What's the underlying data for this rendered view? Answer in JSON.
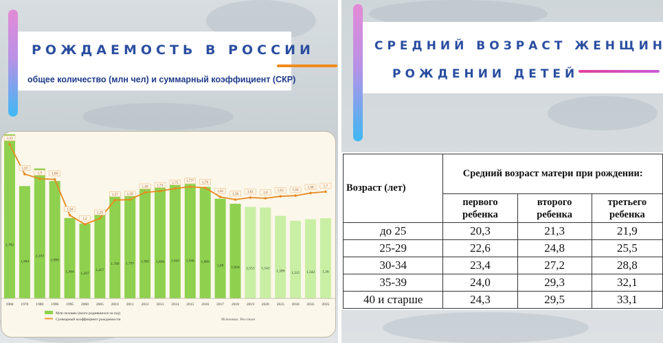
{
  "left": {
    "title": "РОЖДАЕМОСТЬ В РОССИИ",
    "subtitle": "общее  количество (млн чел) и суммарный коэффициент (СКР)",
    "colors": {
      "accent_line": "#f08a1c",
      "bar_actual": "#8fd14f",
      "bar_forecast": "#c9efa5",
      "line": "#e8891f"
    }
  },
  "chart_data": {
    "type": "bar",
    "categories": [
      "1960",
      "1970",
      "1980",
      "1990",
      "1995",
      "2000",
      "2005",
      "2010",
      "2011",
      "2012",
      "2013",
      "2014",
      "2015",
      "2016",
      "2017",
      "2018",
      "2019",
      "2020",
      "2025",
      "2030",
      "2035",
      "2035"
    ],
    "series": [
      {
        "name": "Млн человек (всего родившихся за год)",
        "type": "bar",
        "values": [
          2.782,
          1.904,
          2.203,
          1.989,
          1.364,
          1.267,
          1.457,
          1.789,
          1.797,
          1.902,
          1.896,
          1.943,
          1.94,
          1.889,
          1.69,
          1.604,
          1.551,
          1.541,
          1.399,
          1.315,
          1.342,
          1.36
        ],
        "labels": [
          "2,782",
          "1,904",
          "2,203",
          "1,989",
          "1,364",
          "1,267",
          "1,457",
          "1,789",
          "1,797",
          "1,902",
          "1,896",
          "1,943",
          "1,940",
          "1,889",
          "1,69",
          "1,604",
          "1,551",
          "1,541",
          "1,399",
          "1,315",
          "1,342",
          "1,36"
        ]
      },
      {
        "name": "Суммарный коэффициент рождаемости",
        "type": "line",
        "values": [
          2.43,
          1.97,
          1.9,
          1.89,
          1.34,
          1.2,
          1.29,
          1.57,
          1.58,
          1.69,
          1.71,
          1.75,
          1.777,
          1.76,
          1.62,
          1.58,
          1.61,
          1.6,
          1.63,
          1.64,
          1.68,
          1.7
        ],
        "labels": [
          "2,43",
          "1,97",
          "1,9",
          "1,89",
          "1,34",
          "1,2",
          "1,29",
          "1,57",
          "1,58",
          "1,69",
          "1,71",
          "1,75",
          "1,777",
          "1,76",
          "1,62",
          "1,58",
          "1,61",
          "1,6",
          "1,63",
          "1,64",
          "1,68",
          "1,7"
        ]
      }
    ],
    "forecast_from_index": 16,
    "source": "Источник: Росстат"
  },
  "right": {
    "title_line1": "СРЕДНИЙ ВОЗРАСТ ЖЕНЩИНЫ ПРИ",
    "title_line2": "РОЖДЕНИИ ДЕТЕЙ",
    "colors": {
      "accent_line": "#e0409a"
    },
    "table": {
      "row_header": "Возраст (лет)",
      "group_header": "Средний возраст матери при рождении:",
      "columns": [
        "первого ребенка",
        "второго ребенка",
        "третьего ребенка"
      ],
      "rows": [
        {
          "age": "до 25",
          "values": [
            "20,3",
            "21,3",
            "21,9"
          ]
        },
        {
          "age": "25-29",
          "values": [
            "22,6",
            "24,8",
            "25,5"
          ]
        },
        {
          "age": "30-34",
          "values": [
            "23,4",
            "27,2",
            "28,8"
          ]
        },
        {
          "age": "35-39",
          "values": [
            "24,0",
            "29,3",
            "32,1"
          ]
        },
        {
          "age": "40 и старше",
          "values": [
            "24,3",
            "29,5",
            "33,1"
          ]
        }
      ]
    }
  }
}
